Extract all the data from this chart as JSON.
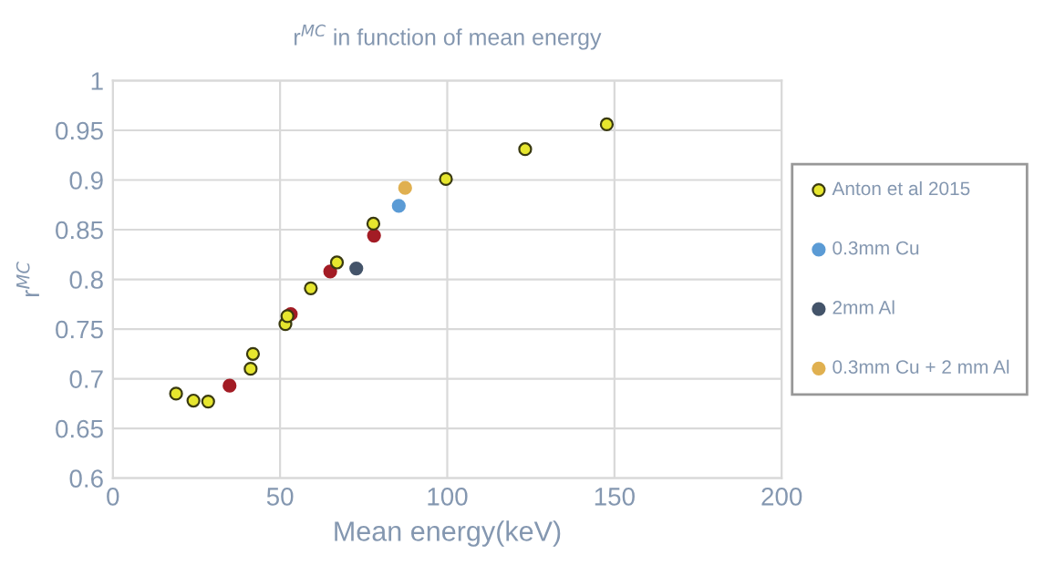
{
  "chart_data": {
    "type": "scatter",
    "title": "r$^{MC}$ in function of mean energy",
    "xlabel": "Mean energy(keV)",
    "ylabel": "r$^{MC}$",
    "xlim": [
      0,
      200
    ],
    "xticks": [
      0,
      50,
      100,
      150,
      200
    ],
    "ylim": [
      0.6,
      1
    ],
    "yticks": [
      0.6,
      0.65,
      0.7,
      0.75,
      0.8,
      0.85,
      0.9,
      0.95,
      1
    ],
    "grid": true,
    "legend": "right",
    "marker": "circle",
    "series": [
      {
        "name": "Anton et al 2015",
        "color": "#e6e62e",
        "x": [
          18.9,
          24.1,
          28.5,
          41.2,
          41.9,
          51.6,
          52.2,
          59.2,
          67.0,
          77.9,
          99.6,
          123.3,
          147.7
        ],
        "values": [
          0.685,
          0.678,
          0.677,
          0.71,
          0.725,
          0.755,
          0.763,
          0.791,
          0.817,
          0.856,
          0.901,
          0.931,
          0.956
        ]
      },
      {
        "color": "#a31c25",
        "x": [
          34.9,
          53.2,
          65.0,
          78.1
        ],
        "values": [
          0.693,
          0.765,
          0.808,
          0.844
        ]
      },
      {
        "name": "0.3mm Cu",
        "color": "#5b9bd5",
        "x": [
          85.5
        ],
        "values": [
          0.874
        ]
      },
      {
        "name": "2mm Al",
        "color": "#44546a",
        "x": [
          72.8
        ],
        "values": [
          0.811
        ]
      },
      {
        "name": "0.3mm Cu + 2 mm Al",
        "color": "#e0b050",
        "x": [
          87.4
        ],
        "values": [
          0.892
        ]
      }
    ]
  }
}
